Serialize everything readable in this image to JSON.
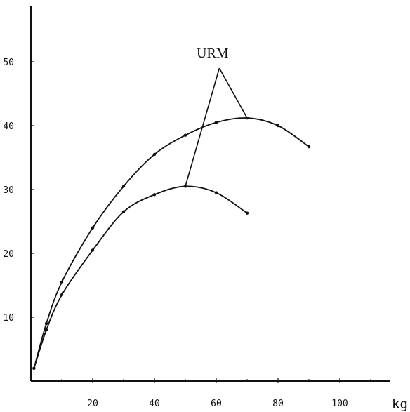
{
  "chart_data": {
    "type": "line",
    "title": "",
    "xlabel": "kg",
    "ylabel": "",
    "xlim": [
      0,
      115
    ],
    "ylim": [
      0,
      57
    ],
    "x_ticks": [
      20,
      40,
      60,
      80,
      100
    ],
    "x_tick_labels": [
      "20",
      "40",
      "60",
      "80",
      "100"
    ],
    "x_minor_ticks": [
      10,
      30,
      50,
      70,
      90,
      110
    ],
    "y_ticks": [
      10,
      20,
      30,
      40,
      50
    ],
    "y_tick_labels": [
      "10",
      "20",
      "30",
      "40",
      "50"
    ],
    "grid": false,
    "legend": "none",
    "series": [
      {
        "x": [
          1,
          5,
          10,
          20,
          30,
          40,
          50,
          60,
          70,
          80,
          90
        ],
        "y": [
          2,
          9,
          15.5,
          24,
          30.5,
          35.5,
          38.5,
          40.5,
          41.2,
          40,
          36.7
        ]
      },
      {
        "x": [
          1,
          5,
          10,
          20,
          30,
          40,
          50,
          60,
          70
        ],
        "y": [
          2,
          8,
          13.5,
          20.5,
          26.5,
          29.2,
          30.5,
          29.5,
          26.3
        ]
      }
    ],
    "annotation": {
      "text": "URM",
      "lines": [
        [
          [
            50,
            30.5
          ],
          [
            61,
            49
          ]
        ],
        [
          [
            61,
            49
          ],
          [
            70,
            41.2
          ]
        ]
      ]
    },
    "colors": {
      "line": "#111111",
      "background": "#ffffff"
    }
  }
}
